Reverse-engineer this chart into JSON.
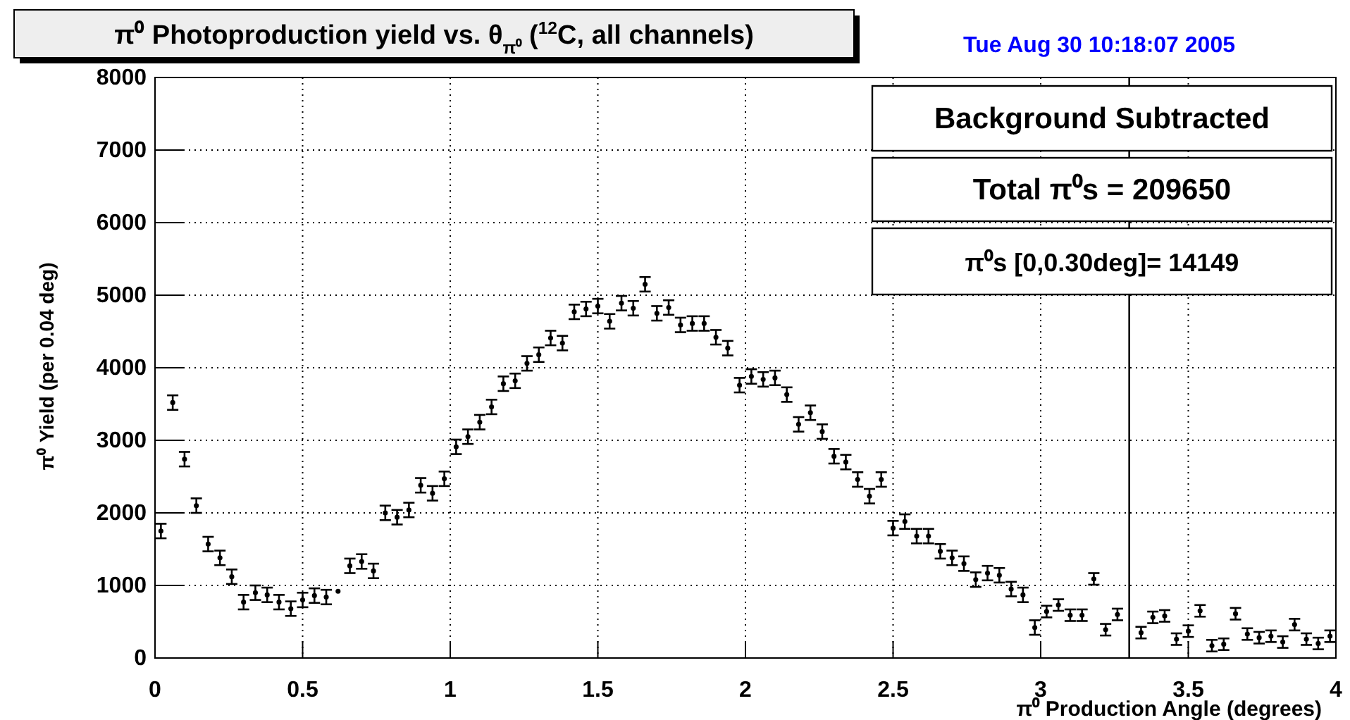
{
  "chart_data": {
    "type": "scatter",
    "title": "π⁰ Photoproduction yield vs. θ$_{π⁰}$ ($^{12}$C, all channels)",
    "xlabel": "π⁰ Production Angle (degrees)",
    "ylabel": "π⁰ Yield (per 0.04 deg)",
    "annotations": [
      "Tue Aug 30 10:18:07 2005",
      "Background Subtracted",
      "Total π⁰s = 209650",
      "π⁰s [0,0.30deg]= 14149"
    ],
    "x": [
      0.02,
      0.06,
      0.1,
      0.14,
      0.18,
      0.22,
      0.26,
      0.3,
      0.34,
      0.38,
      0.42,
      0.46,
      0.5,
      0.54,
      0.58,
      0.62,
      0.66,
      0.7,
      0.74,
      0.78,
      0.82,
      0.86,
      0.9,
      0.94,
      0.98,
      1.02,
      1.06,
      1.1,
      1.14,
      1.18,
      1.22,
      1.26,
      1.3,
      1.34,
      1.38,
      1.42,
      1.46,
      1.5,
      1.54,
      1.58,
      1.62,
      1.66,
      1.7,
      1.74,
      1.78,
      1.82,
      1.86,
      1.9,
      1.94,
      1.98,
      2.02,
      2.06,
      2.1,
      2.14,
      2.18,
      2.22,
      2.26,
      2.3,
      2.34,
      2.38,
      2.42,
      2.46,
      2.5,
      2.54,
      2.58,
      2.62,
      2.66,
      2.7,
      2.74,
      2.78,
      2.82,
      2.86,
      2.9,
      2.94,
      2.98,
      3.02,
      3.06,
      3.1,
      3.14,
      3.18,
      3.22,
      3.26,
      3.3,
      3.34,
      3.38,
      3.42,
      3.46,
      3.5,
      3.54,
      3.58,
      3.62,
      3.66,
      3.7,
      3.74,
      3.78,
      3.82,
      3.86,
      3.9,
      3.94,
      3.98
    ],
    "values": [
      1750,
      3520,
      2740,
      2100,
      1570,
      1380,
      1120,
      770,
      900,
      870,
      770,
      680,
      800,
      860,
      840,
      920,
      1270,
      1330,
      1200,
      2000,
      1940,
      2040,
      2380,
      2270,
      2470,
      2910,
      3050,
      3250,
      3460,
      3780,
      3820,
      4060,
      4180,
      4410,
      4340,
      4770,
      4810,
      4850,
      4640,
      4890,
      4820,
      5150,
      4750,
      4830,
      4590,
      4610,
      4610,
      4420,
      4270,
      3760,
      3880,
      3840,
      3860,
      3630,
      3220,
      3380,
      3120,
      2780,
      2700,
      2460,
      2230,
      2460,
      1790,
      1880,
      1680,
      1680,
      1470,
      1380,
      1300,
      1080,
      1170,
      1140,
      950,
      870,
      420,
      640,
      730,
      590,
      590,
      1090,
      390,
      600,
      null,
      350,
      560,
      580,
      260,
      370,
      650,
      170,
      190,
      610,
      330,
      280,
      300,
      220,
      460,
      260,
      200,
      300
    ],
    "errors": [
      100,
      100,
      100,
      100,
      100,
      100,
      100,
      100,
      100,
      100,
      100,
      100,
      100,
      100,
      100,
      null,
      100,
      100,
      100,
      100,
      100,
      100,
      100,
      100,
      100,
      100,
      100,
      100,
      100,
      100,
      100,
      100,
      100,
      100,
      100,
      100,
      100,
      100,
      100,
      100,
      100,
      100,
      100,
      100,
      100,
      100,
      100,
      100,
      100,
      100,
      100,
      100,
      100,
      100,
      100,
      100,
      100,
      100,
      100,
      100,
      100,
      100,
      100,
      100,
      100,
      100,
      100,
      100,
      100,
      100,
      100,
      100,
      100,
      100,
      100,
      80,
      80,
      80,
      80,
      80,
      80,
      80,
      null,
      80,
      80,
      80,
      80,
      80,
      80,
      80,
      80,
      80,
      80,
      80,
      80,
      80,
      80,
      80,
      80,
      80
    ],
    "color": "#000000",
    "marker": "circle",
    "grid": true,
    "xlim": [
      0,
      4
    ],
    "xticks": [
      0,
      0.5,
      1,
      1.5,
      2,
      2.5,
      3,
      3.5,
      4
    ],
    "ylim": [
      0,
      8000
    ],
    "yticks": [
      0,
      1000,
      2000,
      3000,
      4000,
      5000,
      6000,
      7000,
      8000
    ],
    "ref_lines": [
      {
        "axis": "x",
        "value": 3.3,
        "color": "#000000"
      }
    ]
  }
}
